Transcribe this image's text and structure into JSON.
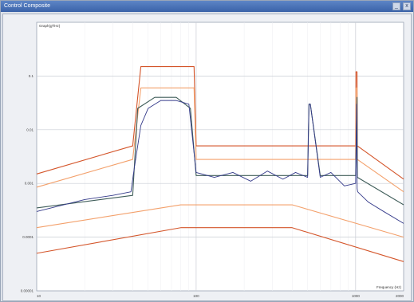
{
  "window": {
    "title": "Control Composite",
    "controls": [
      "_",
      "x"
    ]
  },
  "chart_data": {
    "type": "line",
    "corner_label": "Graph(g²/Hz)",
    "xlabel": "Frequency (Hz)",
    "x_scale": "log",
    "y_scale": "log",
    "xlim": [
      10,
      2000
    ],
    "ylim": [
      1e-05,
      1
    ],
    "x_tick_labels": [
      {
        "value": 10,
        "label": "10"
      },
      {
        "value": 100,
        "label": "100"
      },
      {
        "value": 1000,
        "label": "1000"
      },
      {
        "value": 2000,
        "label": "2000"
      }
    ],
    "y_tick_labels": [
      {
        "value": 0.1,
        "label": "0.1"
      },
      {
        "value": 0.01,
        "label": "0.01"
      },
      {
        "value": 0.001,
        "label": "0.001"
      },
      {
        "value": 0.0001,
        "label": "0.0001"
      },
      {
        "value": 1e-05,
        "label": "0.00001"
      }
    ],
    "grid": true,
    "series": [
      {
        "role": "abort-upper",
        "color": "#d4552a",
        "x": [
          10,
          40,
          45,
          97,
          100,
          300,
          1000,
          1005,
          1020,
          1025,
          2000
        ],
        "y": [
          0.0015,
          0.005,
          0.15,
          0.15,
          0.005,
          0.005,
          0.005,
          0.12,
          0.12,
          0.005,
          0.0012
        ]
      },
      {
        "role": "alarm-upper",
        "color": "#f3a06b",
        "x": [
          10,
          40,
          45,
          97,
          100,
          300,
          1000,
          1005,
          1020,
          1025,
          2000
        ],
        "y": [
          0.00085,
          0.0028,
          0.06,
          0.06,
          0.0028,
          0.0028,
          0.0028,
          0.06,
          0.06,
          0.0028,
          0.0007
        ]
      },
      {
        "role": "reference",
        "color": "#3e5c58",
        "x": [
          10,
          40,
          43,
          55,
          75,
          92,
          100,
          300,
          500,
          510,
          520,
          600,
          1000,
          1020,
          1025,
          2000
        ],
        "y": [
          0.00035,
          0.0006,
          0.025,
          0.04,
          0.04,
          0.025,
          0.0014,
          0.0014,
          0.0014,
          0.03,
          0.03,
          0.0014,
          0.0014,
          0.04,
          0.0013,
          0.0004
        ]
      },
      {
        "role": "alarm-lower",
        "color": "#f3a06b",
        "x": [
          10,
          80,
          400,
          2000
        ],
        "y": [
          0.00015,
          0.0004,
          0.0004,
          0.0001
        ]
      },
      {
        "role": "abort-lower",
        "color": "#d4552a",
        "x": [
          10,
          80,
          400,
          2000
        ],
        "y": [
          5e-05,
          0.00015,
          0.00015,
          3.5e-05
        ]
      },
      {
        "role": "control",
        "color": "#343a8a",
        "x": [
          10,
          20,
          30,
          39,
          41,
          45,
          50,
          60,
          75,
          90,
          100,
          130,
          170,
          220,
          280,
          350,
          420,
          500,
          510,
          520,
          600,
          700,
          850,
          1000,
          1015,
          1022,
          1030,
          1200,
          1500,
          2000
        ],
        "y": [
          0.0003,
          0.0005,
          0.0006,
          0.0007,
          0.002,
          0.012,
          0.025,
          0.035,
          0.035,
          0.03,
          0.0016,
          0.0013,
          0.0016,
          0.0011,
          0.0017,
          0.0012,
          0.0016,
          0.0013,
          0.03,
          0.03,
          0.0013,
          0.0016,
          0.0009,
          0.001,
          0.03,
          0.0008,
          0.0007,
          0.00045,
          0.0003,
          0.00018
        ]
      }
    ]
  }
}
